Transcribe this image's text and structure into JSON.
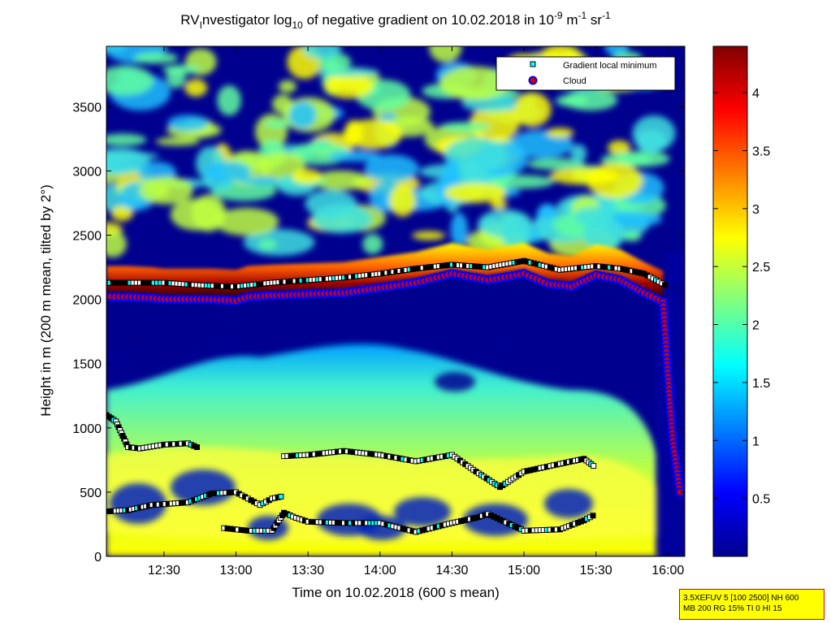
{
  "chart_data": {
    "type": "heatmap",
    "title": "RV Investigator log10 of negative gradient on 10.02.2018 in 10-9 m-1 sr-1",
    "title_parts": {
      "prefix": "RV",
      "prefix_sub": "I",
      "middle": "nvestigator log",
      "log_sub": "10",
      "tail": " of negative gradient on 10.02.2018 in 10",
      "exp1": "-9",
      "unit1": " m",
      "exp2": "-1",
      "unit2": " sr",
      "exp3": "-1"
    },
    "xlabel": "Time on 10.02.2018 (600 s mean)",
    "ylabel": "Height in m (200 m mean, tilted by 2°)",
    "xlim": [
      "12:06",
      "16:07"
    ],
    "ylim": [
      0,
      3970
    ],
    "x_ticks": [
      "12:30",
      "13:00",
      "13:30",
      "14:00",
      "14:30",
      "15:00",
      "15:30",
      "16:00"
    ],
    "y_ticks": [
      0,
      500,
      1000,
      1500,
      2000,
      2500,
      3000,
      3500
    ],
    "colorbar": {
      "colormap": "jet",
      "range": [
        0,
        4.4
      ],
      "ticks": [
        0.5,
        1,
        1.5,
        2,
        2.5,
        3,
        3.5,
        4
      ]
    },
    "legend": {
      "placement": "top-right",
      "entries": [
        {
          "label": "Gradient local minimum",
          "marker": "square",
          "color": "#00ffff"
        },
        {
          "label": "Cloud",
          "marker": "circle",
          "color": "#d00000"
        }
      ]
    },
    "series": [
      {
        "name": "Cloud",
        "x": [
          "12:06",
          "12:15",
          "12:25",
          "12:30",
          "12:50",
          "13:00",
          "13:05",
          "13:15",
          "13:30",
          "13:45",
          "14:00",
          "14:15",
          "14:30",
          "14:45",
          "15:00",
          "15:10",
          "15:20",
          "15:30",
          "15:40",
          "15:50",
          "15:58",
          "16:00",
          "16:02",
          "16:05"
        ],
        "y": [
          2020,
          2020,
          2010,
          2000,
          2000,
          1990,
          2020,
          2030,
          2040,
          2050,
          2090,
          2130,
          2200,
          2150,
          2200,
          2120,
          2100,
          2190,
          2150,
          2050,
          1980,
          1400,
          900,
          500
        ]
      },
      {
        "name": "Gradient local minimum",
        "x": [
          "12:06",
          "12:20",
          "12:30",
          "12:45",
          "13:00",
          "13:15",
          "13:30",
          "13:45",
          "14:00",
          "14:15",
          "14:30",
          "14:45",
          "15:00",
          "15:15",
          "15:30",
          "15:40",
          "15:50",
          "16:00"
        ],
        "y": [
          2130,
          2130,
          2130,
          2110,
          2100,
          2130,
          2150,
          2170,
          2200,
          2240,
          2270,
          2250,
          2300,
          2230,
          2260,
          2240,
          2200,
          2100
        ]
      },
      {
        "name": "Gradient local minimum",
        "x": [
          "12:06",
          "12:10",
          "12:15",
          "12:20",
          "12:30",
          "12:40",
          "12:45"
        ],
        "y": [
          1100,
          1050,
          850,
          840,
          870,
          880,
          840
        ]
      },
      {
        "name": "Gradient local minimum",
        "x": [
          "12:06",
          "12:15",
          "12:25",
          "12:40",
          "12:50",
          "13:00",
          "13:10",
          "13:15",
          "13:20"
        ],
        "y": [
          350,
          360,
          400,
          420,
          490,
          500,
          400,
          450,
          470
        ]
      },
      {
        "name": "Gradient local minimum",
        "x": [
          "12:55",
          "13:05",
          "13:15",
          "13:20",
          "13:25",
          "13:30",
          "13:45",
          "14:00",
          "14:15",
          "14:30",
          "14:40",
          "14:45",
          "15:00",
          "15:15",
          "15:25",
          "15:30"
        ],
        "y": [
          220,
          200,
          200,
          340,
          300,
          270,
          260,
          260,
          190,
          260,
          300,
          330,
          200,
          210,
          280,
          330
        ]
      },
      {
        "name": "Gradient local minimum",
        "x": [
          "13:20",
          "13:30",
          "13:45",
          "14:00",
          "14:15",
          "14:30",
          "14:40",
          "14:50",
          "15:00",
          "15:15",
          "15:25",
          "15:30"
        ],
        "y": [
          780,
          790,
          820,
          790,
          740,
          790,
          660,
          540,
          660,
          720,
          760,
          690
        ]
      }
    ]
  },
  "stamp": {
    "line1": "3.5XEFUV 5 [100 2500] NH 600",
    "line2": "MB 200 RG 15% TI 0 HI 15"
  }
}
